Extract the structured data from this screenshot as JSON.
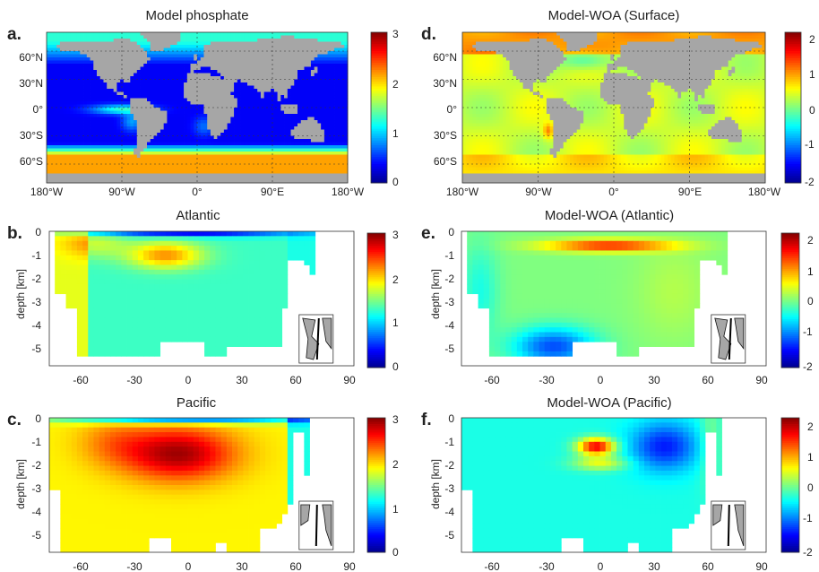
{
  "colormap": [
    "#00008f",
    "#0000ff",
    "#0080ff",
    "#00ffff",
    "#80ff80",
    "#ffff00",
    "#ff8000",
    "#ff0000",
    "#800000"
  ],
  "colors": {
    "land": "#a6a6a6",
    "missing": "#ffffff",
    "grid": "#333333"
  },
  "chart_data": [
    {
      "id": "a",
      "panel_label": "a.",
      "title": "Model phosphate",
      "type": "heatmap",
      "x_ticks": [
        "180°W",
        "90°W",
        "0°",
        "90°E",
        "180°W"
      ],
      "y_ticks": [
        "60°N",
        "30°N",
        "0°",
        "30°S",
        "60°S"
      ],
      "colorbar": {
        "min": 0,
        "max": 3,
        "ticks": [
          "3",
          "2",
          "1",
          "0"
        ]
      },
      "field": "model_surface",
      "grid": true
    },
    {
      "id": "d",
      "panel_label": "d.",
      "title": "Model-WOA (Surface)",
      "type": "heatmap",
      "x_ticks": [
        "180°W",
        "90°W",
        "0°",
        "90°E",
        "180°W"
      ],
      "y_ticks": [
        "60°N",
        "30°N",
        "0°",
        "30°S",
        "60°S"
      ],
      "colorbar": {
        "min": -2,
        "max": 2,
        "ticks": [
          "2",
          "1",
          "0",
          "-1",
          "-2"
        ]
      },
      "field": "diff_surface",
      "grid": true
    },
    {
      "id": "b",
      "panel_label": "b.",
      "title": "Atlantic",
      "type": "heatmap",
      "x_ticks": [
        "-60",
        "-30",
        "0",
        "30",
        "60",
        "90"
      ],
      "y_ticks": [
        "0",
        "-1",
        "-2",
        "-3",
        "-4",
        "-5"
      ],
      "ylabel": "depth [km]",
      "colorbar": {
        "min": 0,
        "max": 3,
        "ticks": [
          "3",
          "2",
          "1",
          "0"
        ]
      },
      "field": "model_atlantic",
      "inset": "atlantic"
    },
    {
      "id": "e",
      "panel_label": "e.",
      "title": "Model-WOA (Atlantic)",
      "type": "heatmap",
      "x_ticks": [
        "-60",
        "-30",
        "0",
        "30",
        "60",
        "90"
      ],
      "y_ticks": [
        "0",
        "-1",
        "-2",
        "-3",
        "-4",
        "-5"
      ],
      "ylabel": "depth [km]",
      "colorbar": {
        "min": -2,
        "max": 2,
        "ticks": [
          "2",
          "1",
          "0",
          "-1",
          "-2"
        ]
      },
      "field": "diff_atlantic",
      "inset": "atlantic"
    },
    {
      "id": "c",
      "panel_label": "c.",
      "title": "Pacific",
      "type": "heatmap",
      "x_ticks": [
        "-60",
        "-30",
        "0",
        "30",
        "60",
        "90"
      ],
      "y_ticks": [
        "0",
        "-1",
        "-2",
        "-3",
        "-4",
        "-5"
      ],
      "ylabel": "depth [km]",
      "colorbar": {
        "min": 0,
        "max": 3,
        "ticks": [
          "3",
          "2",
          "1",
          "0"
        ]
      },
      "field": "model_pacific",
      "inset": "pacific"
    },
    {
      "id": "f",
      "panel_label": "f.",
      "title": "Model-WOA (Pacific)",
      "type": "heatmap",
      "x_ticks": [
        "-60",
        "-30",
        "0",
        "30",
        "60",
        "90"
      ],
      "y_ticks": [
        "0",
        "-1",
        "-2",
        "-3",
        "-4",
        "-5"
      ],
      "ylabel": "depth [km]",
      "colorbar": {
        "min": -2,
        "max": 2,
        "ticks": [
          "2",
          "1",
          "0",
          "-1",
          "-2"
        ]
      },
      "field": "diff_pacific",
      "inset": "pacific"
    }
  ]
}
